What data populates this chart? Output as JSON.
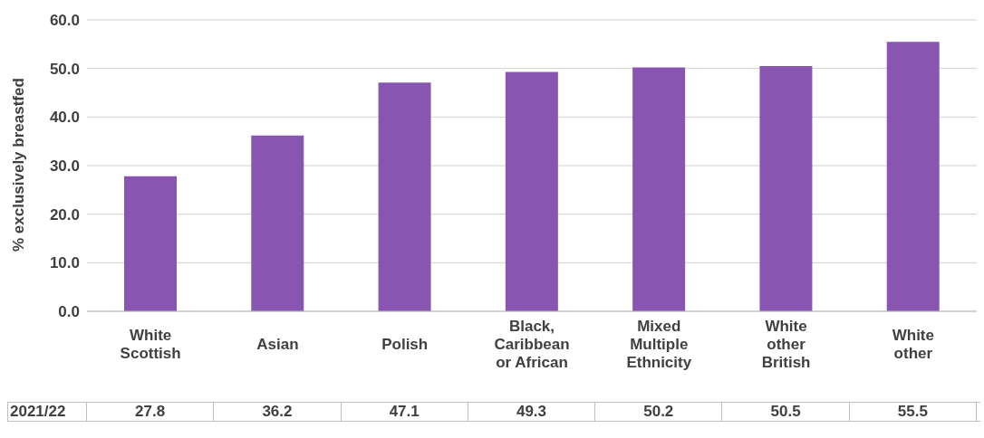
{
  "chart_data": {
    "type": "bar",
    "ylabel": "% exclusively breastfed",
    "categories": [
      "White Scottish",
      "Asian",
      "Polish",
      "Black, Caribbean or African",
      "Mixed Multiple Ethnicity",
      "White other British",
      "White other"
    ],
    "series": [
      {
        "name": "2021/22",
        "color": "#8856b0",
        "values": [
          27.8,
          36.2,
          47.1,
          49.3,
          50.2,
          50.5,
          55.5
        ]
      }
    ],
    "ylim": [
      0,
      60
    ],
    "yticks": [
      {
        "value": 0,
        "label": "0.0"
      },
      {
        "value": 10,
        "label": "10.0"
      },
      {
        "value": 20,
        "label": "20.0"
      },
      {
        "value": 30,
        "label": "30.0"
      },
      {
        "value": 40,
        "label": "40.0"
      },
      {
        "value": 50,
        "label": "50.0"
      },
      {
        "value": 60,
        "label": "60.0"
      }
    ],
    "grid": "y",
    "data_labels": true,
    "legend": "bottom"
  }
}
